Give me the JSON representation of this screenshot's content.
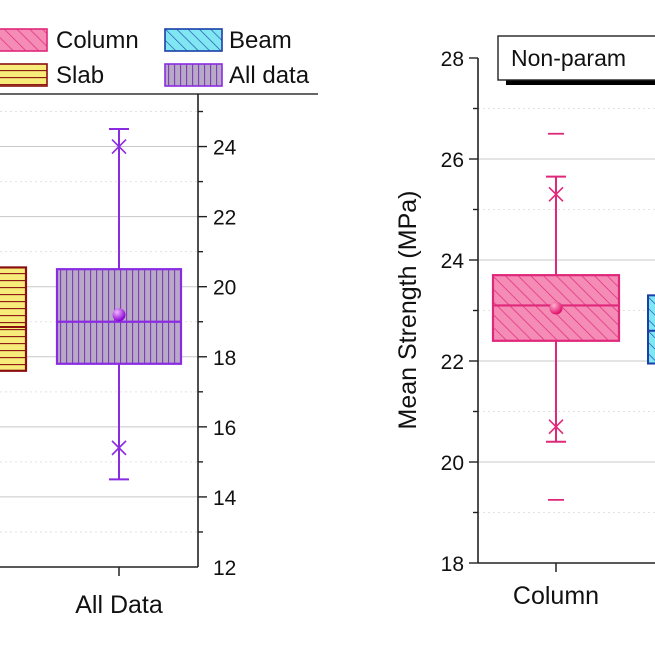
{
  "chart_data": [
    {
      "type": "box",
      "ylabel": "",
      "ylim": [
        12,
        25.5
      ],
      "yaxis_side": "right",
      "yticks": [
        12,
        14,
        16,
        18,
        20,
        22,
        24
      ],
      "grid": true,
      "legend_placement": "top",
      "legend": [
        {
          "label": "Column",
          "pattern": "diagonal-hatch",
          "color": "#f06aa0",
          "edge": "#e0287a"
        },
        {
          "label": "Beam",
          "pattern": "diagonal-hatch",
          "color": "#66e0f0",
          "edge": "#1a3fa8"
        },
        {
          "label": "Slab",
          "pattern": "horizontal-lines",
          "color": "#f7ec7a",
          "edge": "#8a1010"
        },
        {
          "label": "All data",
          "pattern": "vertical-lines",
          "color": "#b8a8c8",
          "edge": "#8a2be2"
        }
      ],
      "categories": [
        "All Data"
      ],
      "boxes": [
        {
          "category": "All Data",
          "color": "#b8a8c8",
          "edge": "#8a2be2",
          "whisker_low": 14.5,
          "q1": 17.8,
          "median": 19.0,
          "mean": 19.2,
          "q3": 20.5,
          "whisker_high": 24.5,
          "pct_low": 15.4,
          "pct_high": 24.0
        }
      ],
      "partial_boxes": [
        {
          "series": "Slab",
          "color": "#f7ec7a",
          "edge": "#8a1010",
          "q1": 17.6,
          "median": 18.85,
          "q3": 20.55
        }
      ]
    },
    {
      "type": "box",
      "title": "Non-param",
      "ylabel": "Mean Strength (MPa)",
      "ylim": [
        18,
        28
      ],
      "yticks": [
        18,
        20,
        22,
        24,
        26,
        28
      ],
      "grid": true,
      "categories": [
        "Column"
      ],
      "boxes": [
        {
          "category": "Column",
          "color": "#f06aa0",
          "edge": "#e0287a",
          "outlier_low": 19.25,
          "whisker_low": 20.4,
          "q1": 22.4,
          "median": 23.1,
          "mean": 23.05,
          "q3": 23.7,
          "whisker_high": 25.65,
          "outlier_high": 26.5,
          "pct_low": 20.7,
          "pct_high": 25.3
        }
      ],
      "partial_boxes": [
        {
          "series": "Beam",
          "color": "#66e0f0",
          "edge": "#1a3fa8",
          "q1": 21.95,
          "median": 22.6,
          "q3": 23.3
        }
      ]
    }
  ]
}
